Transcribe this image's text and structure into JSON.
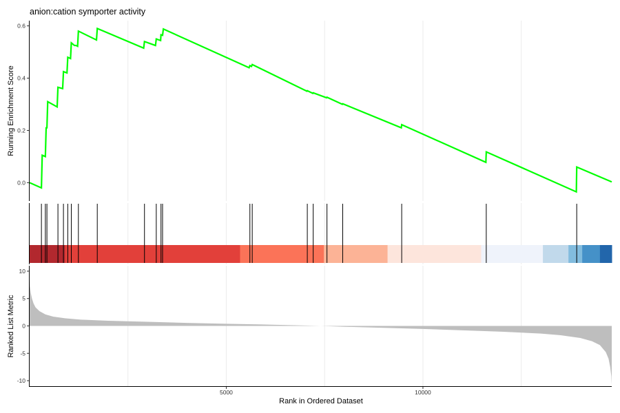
{
  "chart_data": {
    "type": "line",
    "title": "anion:cation symporter activity",
    "xlabel": "Rank in Ordered Dataset",
    "xlim": [
      0,
      14800
    ],
    "x_ticks": [
      5000,
      10000
    ],
    "x_gridlines": [
      2500,
      5000,
      7500,
      10000,
      12500
    ],
    "panels": [
      {
        "name": "running-score",
        "ylabel": "Running Enrichment Score",
        "ylim": [
          -0.07,
          0.62
        ],
        "y_ticks": [
          0.0,
          0.2,
          0.4,
          0.6
        ],
        "line_color": "#00ff00",
        "series": [
          {
            "x": [
              0,
              300,
              320,
              400,
              420,
              440,
              460,
              700,
              720,
              840,
              860,
              950,
              970,
              1040,
              1060,
              1140,
              1180,
              1220,
              1240,
              1700,
              1720,
              2900,
              2920,
              3200,
              3220,
              3330,
              3340,
              3380,
              3400,
              5580,
              5600,
              5640,
              5660,
              7050,
              7060,
              7200,
              7210,
              7550,
              7560,
              7950,
              7960,
              9450,
              9460,
              11600,
              11610,
              13900,
              13910,
              14800
            ],
            "y": [
              0.0,
              -0.02,
              0.105,
              0.1,
              0.21,
              0.21,
              0.31,
              0.29,
              0.365,
              0.36,
              0.425,
              0.42,
              0.48,
              0.475,
              0.535,
              0.525,
              0.525,
              0.522,
              0.58,
              0.546,
              0.59,
              0.515,
              0.54,
              0.525,
              0.55,
              0.544,
              0.566,
              0.564,
              0.588,
              0.44,
              0.448,
              0.445,
              0.452,
              0.35,
              0.352,
              0.342,
              0.344,
              0.325,
              0.327,
              0.3,
              0.302,
              0.21,
              0.222,
              0.078,
              0.118,
              -0.035,
              0.06,
              0.003
            ]
          }
        ]
      },
      {
        "name": "gene-hits",
        "type": "barcode",
        "positions": [
          300,
          400,
          440,
          720,
          860,
          970,
          1060,
          1240,
          1720,
          2920,
          3220,
          3340,
          3380,
          5600,
          5660,
          7060,
          7210,
          7560,
          7960,
          9460,
          11610,
          13910
        ]
      },
      {
        "name": "color-band",
        "type": "heatmap",
        "segments": [
          {
            "from": 0,
            "to": 900,
            "color": "#b2282e"
          },
          {
            "from": 900,
            "to": 5350,
            "color": "#e2403a"
          },
          {
            "from": 5350,
            "to": 7480,
            "color": "#fb7358"
          },
          {
            "from": 7480,
            "to": 9100,
            "color": "#fcb396"
          },
          {
            "from": 9100,
            "to": 11480,
            "color": "#fde5dc"
          },
          {
            "from": 11480,
            "to": 13050,
            "color": "#eff3fb"
          },
          {
            "from": 13050,
            "to": 13700,
            "color": "#c1d9eb"
          },
          {
            "from": 13700,
            "to": 14050,
            "color": "#82bcde"
          },
          {
            "from": 14050,
            "to": 14500,
            "color": "#4591c8"
          },
          {
            "from": 14500,
            "to": 14800,
            "color": "#2266ab"
          }
        ]
      },
      {
        "name": "ranked-list",
        "type": "area",
        "ylabel": "Ranked List Metric",
        "ylim": [
          -11,
          11
        ],
        "y_ticks": [
          10,
          5,
          0,
          -5,
          -10
        ],
        "fill_color": "#bebebe",
        "series": [
          {
            "x": [
              0,
              10,
              30,
              60,
              100,
              150,
              250,
              400,
              600,
              900,
              1300,
              2000,
              3000,
              4000,
              5000,
              6000,
              7000,
              7400,
              8000,
              9000,
              10000,
              11000,
              12000,
              13000,
              13500,
              14000,
              14300,
              14500,
              14650,
              14720,
              14760,
              14790,
              14800
            ],
            "y": [
              8.5,
              7.2,
              6.0,
              5.0,
              4.1,
              3.4,
              2.7,
              2.1,
              1.7,
              1.4,
              1.15,
              0.95,
              0.75,
              0.55,
              0.4,
              0.25,
              0.08,
              0.0,
              -0.15,
              -0.35,
              -0.55,
              -0.8,
              -1.05,
              -1.4,
              -1.7,
              -2.2,
              -2.8,
              -3.5,
              -4.8,
              -6.0,
              -7.5,
              -9.2,
              -10.8
            ]
          }
        ]
      }
    ]
  }
}
